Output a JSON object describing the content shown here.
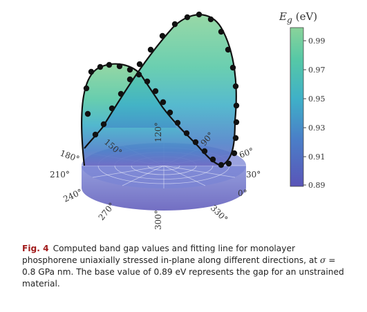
{
  "chart_data": {
    "type": "polar-3d-surface",
    "colorbar": {
      "title_symbol": "E",
      "title_sub": "g",
      "title_unit": "(eV)",
      "ticks": [
        "0.99",
        "0.97",
        "0.95",
        "0.93",
        "0.91",
        "0.89"
      ],
      "range": [
        0.89,
        1.0
      ],
      "colors": [
        "#5a55b8",
        "#4a7fc8",
        "#3fb0c8",
        "#56c8a6",
        "#8ad39a"
      ]
    },
    "angle_labels": [
      "0°",
      "30°",
      "60°",
      "90°",
      "120°",
      "150°",
      "180°",
      "210°",
      "240°",
      "270°",
      "300°",
      "330°"
    ],
    "series": [
      {
        "angle_deg": [
          0,
          15,
          30,
          45,
          60,
          75,
          90,
          105,
          120,
          135,
          150,
          165,
          180
        ],
        "gap_eV": [
          0.89,
          0.905,
          0.94,
          0.97,
          0.99,
          0.998,
          1.0,
          0.995,
          0.975,
          0.955,
          0.94,
          0.91,
          0.89
        ]
      }
    ],
    "base_value_eV": 0.89
  },
  "caption": {
    "label": "Fig. 4",
    "text_1": "Computed band gap values and fitting line for monolayer phosphorene uniaxially stressed in-plane along different directions, at ",
    "sigma": "σ",
    "text_2": " = 0.8 GPa nm. The base value of 0.89 eV represents the gap for an unstrained material."
  }
}
